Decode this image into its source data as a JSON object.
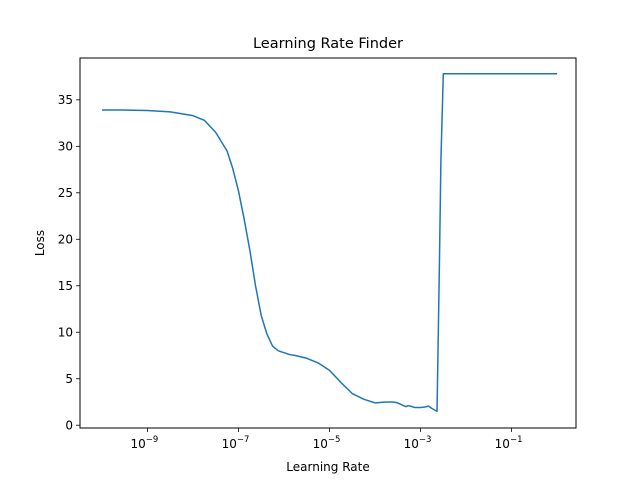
{
  "chart_data": {
    "type": "line",
    "title": "Learning Rate Finder",
    "xlabel": "Learning Rate",
    "ylabel": "Loss",
    "xscale": "log",
    "xlim": [
      3.3e-11,
      2.6
    ],
    "ylim": [
      -0.3,
      39.5
    ],
    "grid": false,
    "color": "#1f77b4",
    "x_ticks": [
      {
        "value": 1e-09,
        "base": "10",
        "exp": "−9"
      },
      {
        "value": 1e-07,
        "base": "10",
        "exp": "−7"
      },
      {
        "value": 1e-05,
        "base": "10",
        "exp": "−5"
      },
      {
        "value": 0.001,
        "base": "10",
        "exp": "−3"
      },
      {
        "value": 0.1,
        "base": "10",
        "exp": "−1"
      }
    ],
    "y_ticks": [
      {
        "value": 0,
        "label": "0"
      },
      {
        "value": 5,
        "label": "5"
      },
      {
        "value": 10,
        "label": "10"
      },
      {
        "value": 15,
        "label": "15"
      },
      {
        "value": 20,
        "label": "20"
      },
      {
        "value": 25,
        "label": "25"
      },
      {
        "value": 30,
        "label": "30"
      },
      {
        "value": 35,
        "label": "35"
      }
    ],
    "series": [
      {
        "x": [
          1e-10,
          3.16e-10,
          1e-09,
          3.16e-09,
          1e-08,
          1.78e-08,
          3.16e-08,
          5.62e-08,
          7.5e-08,
          1e-07,
          1.33e-07,
          1.78e-07,
          2.37e-07,
          3.16e-07,
          4.22e-07,
          5.62e-07,
          7.5e-07,
          1e-06,
          1.33e-06,
          1.78e-06,
          3.16e-06,
          5.62e-06,
          1e-05,
          1.78e-05,
          3.16e-05,
          5.62e-05,
          0.0001,
          0.000178,
          0.00025,
          0.000316,
          0.000422,
          0.00048,
          0.00053,
          0.0006,
          0.00075,
          0.001,
          0.0012,
          0.0015,
          0.00178,
          0.0021,
          0.0023,
          0.0026,
          0.0028,
          0.00316,
          0.0037,
          0.0042,
          0.01,
          0.1,
          1.0
        ],
        "y": [
          33.9,
          33.9,
          33.85,
          33.7,
          33.3,
          32.8,
          31.5,
          29.5,
          27.6,
          25.2,
          22.2,
          18.8,
          15.0,
          11.8,
          9.8,
          8.5,
          8.0,
          7.8,
          7.6,
          7.5,
          7.2,
          6.7,
          5.9,
          4.6,
          3.4,
          2.8,
          2.4,
          2.5,
          2.5,
          2.4,
          2.1,
          2.0,
          2.1,
          2.05,
          1.9,
          1.9,
          1.95,
          2.05,
          1.8,
          1.6,
          1.5,
          17.5,
          28.5,
          37.8,
          37.8,
          37.8,
          37.8,
          37.8,
          37.8
        ]
      }
    ]
  }
}
